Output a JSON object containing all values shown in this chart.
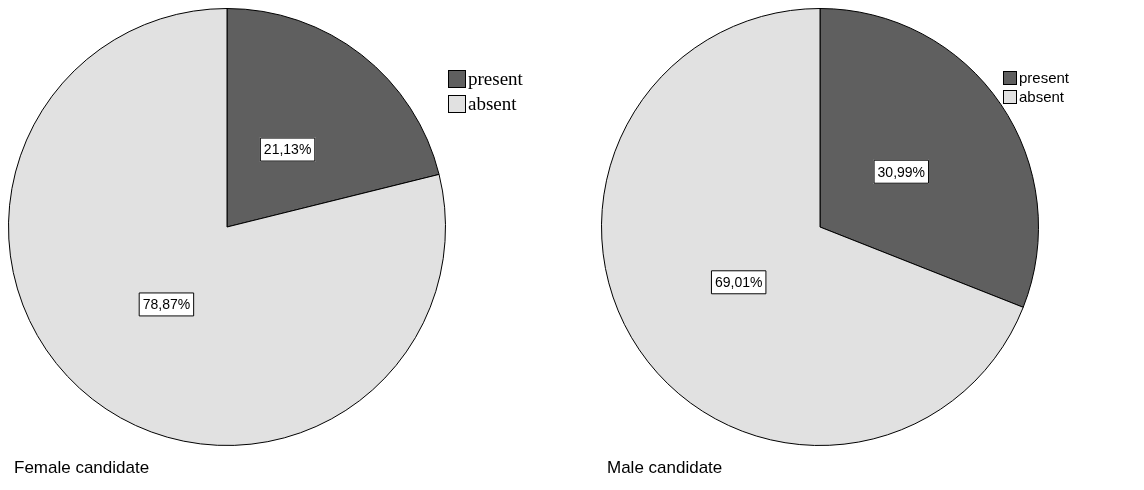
{
  "chart_data": [
    {
      "type": "pie",
      "title": "Female candidate",
      "categories": [
        "present",
        "absent"
      ],
      "values": [
        21.13,
        78.87
      ],
      "colors": [
        "#5f5f5f",
        "#e1e1e1"
      ],
      "value_labels": [
        "21,13%",
        "78,87%"
      ],
      "legend": "top right"
    },
    {
      "type": "pie",
      "title": "Male candidate",
      "categories": [
        "present",
        "absent"
      ],
      "values": [
        30.99,
        69.01
      ],
      "colors": [
        "#5f5f5f",
        "#e1e1e1"
      ],
      "value_labels": [
        "30,99%",
        "69,01%"
      ],
      "legend": "top right"
    }
  ]
}
